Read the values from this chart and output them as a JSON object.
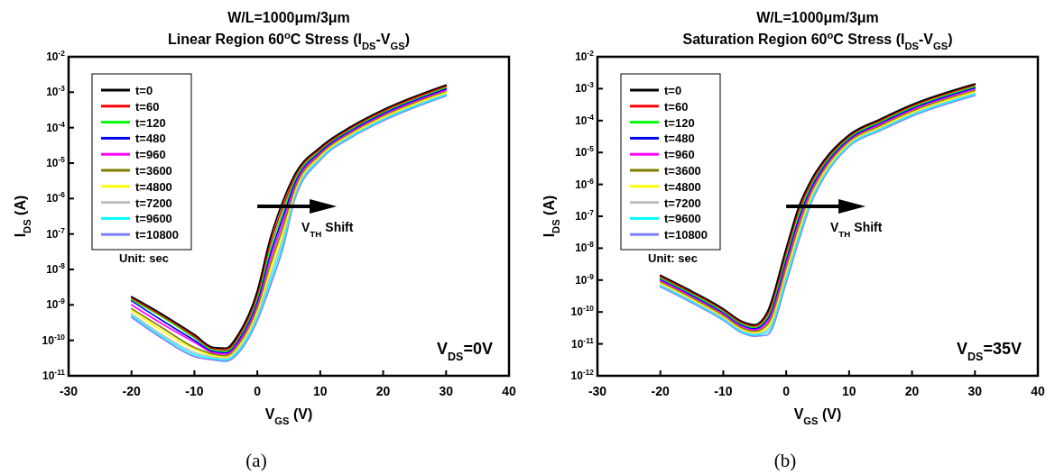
{
  "chart_data": [
    {
      "type": "line",
      "title": "W/L=1000μm/3μm",
      "subtitle": "Linear Region 60$^{o}$C Stress (I$_{DS}$-V$_{GS}$)",
      "xlabel": "V$_{GS}$ (V)",
      "ylabel": "I$_{DS}$ (A)",
      "log": "y",
      "grid": false,
      "legend": "top left",
      "line_style": "solid",
      "marker": "none",
      "xlim": [
        -30,
        40
      ],
      "xticks": [
        -30,
        -20,
        -10,
        0,
        10,
        20,
        30,
        40
      ],
      "ylim": [
        1e-11,
        0.01
      ],
      "yticks": [
        {
          "value": 1e-11,
          "label": "10$^{-11}$"
        },
        {
          "value": 1e-10,
          "label": "10$^{-10}$"
        },
        {
          "value": 1e-09,
          "label": "10$^{-9}$"
        },
        {
          "value": 1e-08,
          "label": "10$^{-8}$"
        },
        {
          "value": 1e-07,
          "label": "10$^{-7}$"
        },
        {
          "value": 1e-06,
          "label": "10$^{-6}$"
        },
        {
          "value": 1e-05,
          "label": "10$^{-5}$"
        },
        {
          "value": 0.0001,
          "label": "10$^{-4}$"
        },
        {
          "value": 0.001,
          "label": "10$^{-3}$"
        },
        {
          "value": 0.01,
          "label": "10$^{-2}$"
        }
      ],
      "x": [
        -20,
        -15,
        -10,
        -7,
        -5,
        -3,
        0,
        2,
        4,
        6,
        10,
        15,
        20,
        30
      ],
      "series": [
        {
          "name": "t=0",
          "color": "#000000",
          "values": [
            1.7e-09,
            5.3e-10,
            1.45e-10,
            6.3e-11,
            6e-11,
            1.5e-10,
            2.5e-09,
            7e-08,
            7.9e-07,
            5e-06,
            2.8e-05,
            0.00011,
            0.00032,
            0.0016
          ]
        },
        {
          "name": "t=60",
          "color": "#ff0000",
          "values": [
            1.55e-09,
            4.8e-10,
            1.3e-10,
            5.8e-11,
            5.4e-11,
            1.3e-10,
            2e-09,
            5e-08,
            5.6e-07,
            4.2e-06,
            2.55e-05,
            0.000102,
            0.000295,
            0.00148
          ]
        },
        {
          "name": "t=120",
          "color": "#00ff00",
          "values": [
            1.42e-09,
            4.4e-10,
            1.18e-10,
            5.3e-11,
            4.9e-11,
            1.15e-10,
            1.6e-09,
            3.5e-08,
            4e-07,
            3.5e-06,
            2.33e-05,
            9.4e-05,
            0.000273,
            0.00137
          ]
        },
        {
          "name": "t=480",
          "color": "#0000ff",
          "values": [
            1.3e-09,
            3.5e-10,
            1e-10,
            4.9e-11,
            4.5e-11,
            1e-10,
            1.3e-09,
            2.5e-08,
            2.8e-07,
            2.9e-06,
            2.13e-05,
            8.7e-05,
            0.000252,
            0.00126
          ]
        },
        {
          "name": "t=960",
          "color": "#ff00ff",
          "values": [
            1e-09,
            2.8e-10,
            8.9e-11,
            4.5e-11,
            4.1e-11,
            8.7e-11,
            1.05e-09,
            1.8e-08,
            2e-07,
            2.4e-06,
            1.94e-05,
            8e-05,
            0.000233,
            0.00117
          ]
        },
        {
          "name": "t=3600",
          "color": "#808000",
          "values": [
            7.9e-10,
            2.2e-10,
            6.3e-11,
            4.1e-11,
            3.7e-11,
            7.6e-11,
            8.5e-10,
            1.25e-08,
            1.4e-07,
            2e-06,
            1.77e-05,
            7.4e-05,
            0.000215,
            0.00108
          ]
        },
        {
          "name": "t=4800",
          "color": "#ffff00",
          "values": [
            7.1e-10,
            1.8e-10,
            5.6e-11,
            3.7e-11,
            3.4e-11,
            6.6e-11,
            6.8e-10,
            9e-09,
            1e-07,
            1.7e-06,
            1.61e-05,
            6.9e-05,
            0.000199,
            0.001
          ]
        },
        {
          "name": "t=7200",
          "color": "#c0c0c0",
          "values": [
            5.6e-10,
            1.4e-10,
            4.5e-11,
            3.4e-11,
            3.1e-11,
            5.8e-11,
            5.5e-10,
            6.3e-09,
            7.1e-08,
            1.4e-06,
            1.47e-05,
            6.3e-05,
            0.000184,
            0.00092
          ]
        },
        {
          "name": "t=9600",
          "color": "#00ffff",
          "values": [
            5e-10,
            1.25e-10,
            4e-11,
            3.1e-11,
            2.8e-11,
            5e-11,
            4.5e-10,
            4.5e-09,
            5e-08,
            1.2e-06,
            1.34e-05,
            5.8e-05,
            0.00017,
            0.00085
          ]
        },
        {
          "name": "t=10800",
          "color": "#8080ff",
          "values": [
            4.5e-10,
            1.1e-10,
            3.5e-11,
            2.8e-11,
            2.55e-11,
            4.4e-11,
            3.6e-10,
            3.2e-09,
            3.6e-08,
            1e-06,
            1.22e-05,
            5.4e-05,
            0.000157,
            0.00079
          ]
        }
      ],
      "annotations": [
        "Unit: sec",
        "V$_{TH}$ Shift",
        "V$_{DS}$=0V",
        "(a)"
      ]
    },
    {
      "type": "line",
      "title": "W/L=1000μm/3μm",
      "subtitle": "Saturation Region 60$^{o}$C Stress (I$_{DS}$-V$_{GS}$)",
      "xlabel": "V$_{GS}$ (V)",
      "ylabel": "I$_{DS}$ (A)",
      "log": "y",
      "grid": false,
      "legend": "top left",
      "line_style": "solid",
      "marker": "none",
      "xlim": [
        -30,
        40
      ],
      "xticks": [
        -30,
        -20,
        -10,
        0,
        10,
        20,
        30,
        40
      ],
      "ylim": [
        1e-12,
        0.01
      ],
      "yticks": [
        {
          "value": 1e-12,
          "label": "10$^{-12}$"
        },
        {
          "value": 1e-11,
          "label": "10$^{-11}$"
        },
        {
          "value": 1e-10,
          "label": "10$^{-10}$"
        },
        {
          "value": 1e-09,
          "label": "10$^{-9}$"
        },
        {
          "value": 1e-08,
          "label": "10$^{-8}$"
        },
        {
          "value": 1e-07,
          "label": "10$^{-7}$"
        },
        {
          "value": 1e-06,
          "label": "10$^{-6}$"
        },
        {
          "value": 1e-05,
          "label": "10$^{-5}$"
        },
        {
          "value": 0.0001,
          "label": "10$^{-4}$"
        },
        {
          "value": 0.001,
          "label": "10$^{-3}$"
        },
        {
          "value": 0.01,
          "label": "10$^{-2}$"
        }
      ],
      "x": [
        -20,
        -15,
        -10,
        -7,
        -5,
        -3,
        0,
        2,
        4,
        6,
        10,
        15,
        20,
        30
      ],
      "series": [
        {
          "name": "t=0",
          "color": "#000000",
          "values": [
            1.41e-09,
            4.47e-10,
            1.26e-10,
            5.01e-11,
            3.98e-11,
            1e-10,
            1e-08,
            2e-07,
            1.41e-06,
            5.62e-06,
            3.55e-05,
            0.000112,
            0.000316,
            0.00141
          ]
        },
        {
          "name": "t=60",
          "color": "#ff0000",
          "values": [
            1.29e-09,
            4.08e-10,
            1.15e-10,
            4.57e-11,
            3.63e-11,
            8.3e-11,
            7.6e-09,
            1.52e-07,
            1.17e-06,
            4.9e-06,
            3.24e-05,
            0.000102,
            0.000288,
            0.00129
          ]
        },
        {
          "name": "t=120",
          "color": "#00ff00",
          "values": [
            1.17e-09,
            3.72e-10,
            1.05e-10,
            4.17e-11,
            3.31e-11,
            6.9e-11,
            5.8e-09,
            1.15e-07,
            9.8e-07,
            4.27e-06,
            2.95e-05,
            9.32e-05,
            0.000263,
            0.00117
          ]
        },
        {
          "name": "t=480",
          "color": "#0000ff",
          "values": [
            1.07e-09,
            3.39e-10,
            9.56e-11,
            3.8e-11,
            3.02e-11,
            5.8e-11,
            4.4e-09,
            8.7e-08,
            8.1e-07,
            3.72e-06,
            2.69e-05,
            8.5e-05,
            0.00024,
            0.00107
          ]
        },
        {
          "name": "t=960",
          "color": "#ff00ff",
          "values": [
            9.76e-10,
            3.09e-10,
            8.72e-11,
            3.47e-11,
            2.75e-11,
            4.8e-11,
            3.3e-09,
            6.6e-08,
            6.7e-07,
            3.24e-06,
            2.46e-05,
            7.75e-05,
            0.000219,
            0.000976
          ]
        },
        {
          "name": "t=3600",
          "color": "#808000",
          "values": [
            8.9e-10,
            2.82e-10,
            7.95e-11,
            3.16e-11,
            2.51e-11,
            4e-11,
            2.5e-09,
            5e-08,
            5.6e-07,
            2.82e-06,
            2.24e-05,
            7.07e-05,
            0.000199,
            0.00089
          ]
        },
        {
          "name": "t=4800",
          "color": "#ffff00",
          "values": [
            8.11e-10,
            2.57e-10,
            7.25e-11,
            2.88e-11,
            2.29e-11,
            3.3e-11,
            1.9e-09,
            3.8e-08,
            4.7e-07,
            2.46e-06,
            2.04e-05,
            6.44e-05,
            0.000182,
            0.000811
          ]
        },
        {
          "name": "t=7200",
          "color": "#c0c0c0",
          "values": [
            7.4e-10,
            2.35e-10,
            6.62e-11,
            2.63e-11,
            2.09e-11,
            2.8e-11,
            1.45e-09,
            2.9e-08,
            3.9e-07,
            2.14e-06,
            1.86e-05,
            5.88e-05,
            0.000166,
            0.00074
          ]
        },
        {
          "name": "t=9600",
          "color": "#00ffff",
          "values": [
            6.75e-10,
            2.14e-10,
            6.04e-11,
            2.4e-11,
            1.91e-11,
            2.3e-11,
            1.1e-09,
            2.2e-08,
            3.2e-07,
            1.86e-06,
            1.7e-05,
            5.36e-05,
            0.000151,
            0.000675
          ]
        },
        {
          "name": "t=10800",
          "color": "#8080ff",
          "values": [
            6.16e-10,
            1.95e-10,
            5.51e-11,
            2.19e-11,
            1.74e-11,
            1.9e-11,
            8.3e-10,
            1.7e-08,
            2.7e-07,
            1.62e-06,
            1.55e-05,
            4.89e-05,
            0.000138,
            0.000616
          ]
        }
      ],
      "annotations": [
        "Unit: sec",
        "V$_{TH}$ Shift",
        "V$_{DS}$=35V",
        "(b)"
      ]
    }
  ]
}
